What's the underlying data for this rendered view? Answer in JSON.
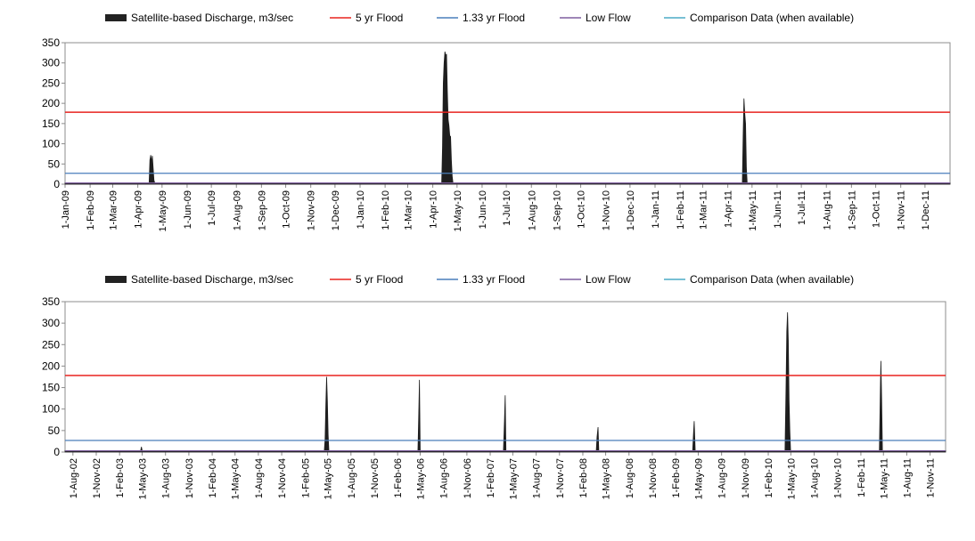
{
  "chart_data": [
    {
      "type": "area",
      "legend": [
        {
          "label": "Satellite-based Discharge, m3/sec",
          "color": "#222222",
          "kind": "area"
        },
        {
          "label": "5 yr Flood",
          "color": "#e8231f",
          "kind": "line"
        },
        {
          "label": "1.33 yr Flood",
          "color": "#4a7ebb",
          "kind": "line"
        },
        {
          "label": "Low Flow",
          "color": "#7f5f9f",
          "kind": "line"
        },
        {
          "label": "Comparison Data (when available)",
          "color": "#4bacc6",
          "kind": "line"
        }
      ],
      "ylim": [
        0,
        350
      ],
      "yticks": [
        0,
        50,
        100,
        150,
        200,
        250,
        300,
        350
      ],
      "thresholds": {
        "five_yr_flood": 178,
        "one_33_yr_flood": 27,
        "low_flow": 3
      },
      "x_ticks": [
        "1-Jan-09",
        "1-Feb-09",
        "1-Mar-09",
        "1-Apr-09",
        "1-May-09",
        "1-Jun-09",
        "1-Jul-09",
        "1-Aug-09",
        "1-Sep-09",
        "1-Oct-09",
        "1-Nov-09",
        "1-Dec-09",
        "1-Jan-10",
        "1-Feb-10",
        "1-Mar-10",
        "1-Apr-10",
        "1-May-10",
        "1-Jun-10",
        "1-Jul-10",
        "1-Aug-10",
        "1-Sep-10",
        "1-Oct-10",
        "1-Nov-10",
        "1-Dec-10",
        "1-Jan-11",
        "1-Feb-11",
        "1-Mar-11",
        "1-Apr-11",
        "1-May-11",
        "1-Jun-11",
        "1-Jul-11",
        "1-Aug-11",
        "1-Sep-11",
        "1-Oct-11",
        "1-Nov-11",
        "1-Dec-11"
      ],
      "x_range": [
        "2009-01-01",
        "2012-01-01"
      ],
      "series": [
        {
          "x": [
            "2009-01-01",
            "2009-04-15",
            "2009-04-16",
            "2009-04-17",
            "2009-04-18",
            "2009-04-19",
            "2009-04-20",
            "2009-04-21",
            "2009-04-22",
            "2010-04-12",
            "2010-04-13",
            "2010-04-14",
            "2010-04-15",
            "2010-04-16",
            "2010-04-17",
            "2010-04-18",
            "2010-04-19",
            "2010-04-20",
            "2010-04-21",
            "2010-04-22",
            "2010-04-23",
            "2010-04-24",
            "2010-04-25",
            "2010-04-26",
            "2010-04-27",
            "2010-04-28",
            "2011-04-19",
            "2011-04-20",
            "2011-04-21",
            "2011-04-22",
            "2011-04-23",
            "2011-04-24",
            "2011-04-25",
            "2012-01-01"
          ],
          "values": [
            3,
            3,
            60,
            72,
            55,
            70,
            40,
            10,
            3,
            3,
            90,
            250,
            300,
            328,
            318,
            322,
            230,
            160,
            145,
            120,
            118,
            60,
            20,
            3,
            3,
            3,
            3,
            120,
            212,
            175,
            150,
            40,
            3,
            3
          ]
        }
      ]
    },
    {
      "type": "area",
      "legend": [
        {
          "label": "Satellite-based Discharge, m3/sec",
          "color": "#222222",
          "kind": "area"
        },
        {
          "label": "5 yr Flood",
          "color": "#e8231f",
          "kind": "line"
        },
        {
          "label": "1.33 yr Flood",
          "color": "#4a7ebb",
          "kind": "line"
        },
        {
          "label": "Low Flow",
          "color": "#7f5f9f",
          "kind": "line"
        },
        {
          "label": "Comparison Data (when available)",
          "color": "#4bacc6",
          "kind": "line"
        }
      ],
      "ylim": [
        0,
        350
      ],
      "yticks": [
        0,
        50,
        100,
        150,
        200,
        250,
        300,
        350
      ],
      "thresholds": {
        "five_yr_flood": 178,
        "one_33_yr_flood": 27,
        "low_flow": 3
      },
      "x_ticks": [
        "1-Aug-02",
        "1-Nov-02",
        "1-Feb-03",
        "1-May-03",
        "1-Aug-03",
        "1-Nov-03",
        "1-Feb-04",
        "1-May-04",
        "1-Aug-04",
        "1-Nov-04",
        "1-Feb-05",
        "1-May-05",
        "1-Aug-05",
        "1-Nov-05",
        "1-Feb-06",
        "1-May-06",
        "1-Aug-06",
        "1-Nov-06",
        "1-Feb-07",
        "1-May-07",
        "1-Aug-07",
        "1-Nov-07",
        "1-Feb-08",
        "1-May-08",
        "1-Aug-08",
        "1-Nov-08",
        "1-Feb-09",
        "1-May-09",
        "1-Aug-09",
        "1-Nov-09",
        "1-Feb-10",
        "1-May-10",
        "1-Aug-10",
        "1-Nov-10",
        "1-Feb-11",
        "1-May-11",
        "1-Aug-11",
        "1-Nov-11"
      ],
      "x_range": [
        "2002-07-01",
        "2012-01-01"
      ],
      "series": [
        {
          "x": [
            "2002-07-01",
            "2003-04-25",
            "2003-04-28",
            "2003-05-01",
            "2005-04-18",
            "2005-04-21",
            "2005-04-24",
            "2005-04-27",
            "2005-04-30",
            "2005-05-03",
            "2005-05-06",
            "2006-04-22",
            "2006-04-25",
            "2006-04-28",
            "2006-05-01",
            "2007-03-25",
            "2007-03-29",
            "2007-04-01",
            "2007-04-04",
            "2008-03-25",
            "2008-03-28",
            "2008-04-01",
            "2008-04-04",
            "2009-04-09",
            "2009-04-12",
            "2009-04-15",
            "2009-04-19",
            "2010-04-08",
            "2010-04-12",
            "2010-04-15",
            "2010-04-18",
            "2010-04-21",
            "2010-04-24",
            "2010-04-27",
            "2010-04-30",
            "2011-04-15",
            "2011-04-19",
            "2011-04-21",
            "2011-04-24",
            "2011-04-27",
            "2012-01-01"
          ],
          "values": [
            3,
            3,
            12,
            3,
            3,
            30,
            110,
            175,
            120,
            40,
            3,
            3,
            80,
            168,
            3,
            3,
            70,
            132,
            3,
            3,
            35,
            58,
            3,
            3,
            40,
            72,
            3,
            3,
            150,
            280,
            325,
            260,
            120,
            50,
            3,
            3,
            150,
            212,
            120,
            3,
            3
          ]
        }
      ]
    }
  ]
}
